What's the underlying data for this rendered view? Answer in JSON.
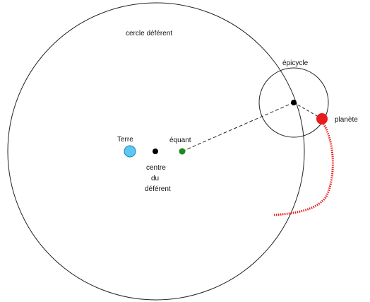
{
  "labels": {
    "deferent": "cercle déférent",
    "epicycle": "épicycle",
    "planet": "planète",
    "earth": "Terre",
    "equant": "équant",
    "centre_line1": "centre",
    "centre_line2": "du",
    "centre_line3": "déférent"
  },
  "colors": {
    "stroke": "#222222",
    "earth": "#5bc8f5",
    "equant": "#1a8a1a",
    "planet": "#e81c1c",
    "trail": "#e81c1c",
    "center_points": "#000000"
  }
}
